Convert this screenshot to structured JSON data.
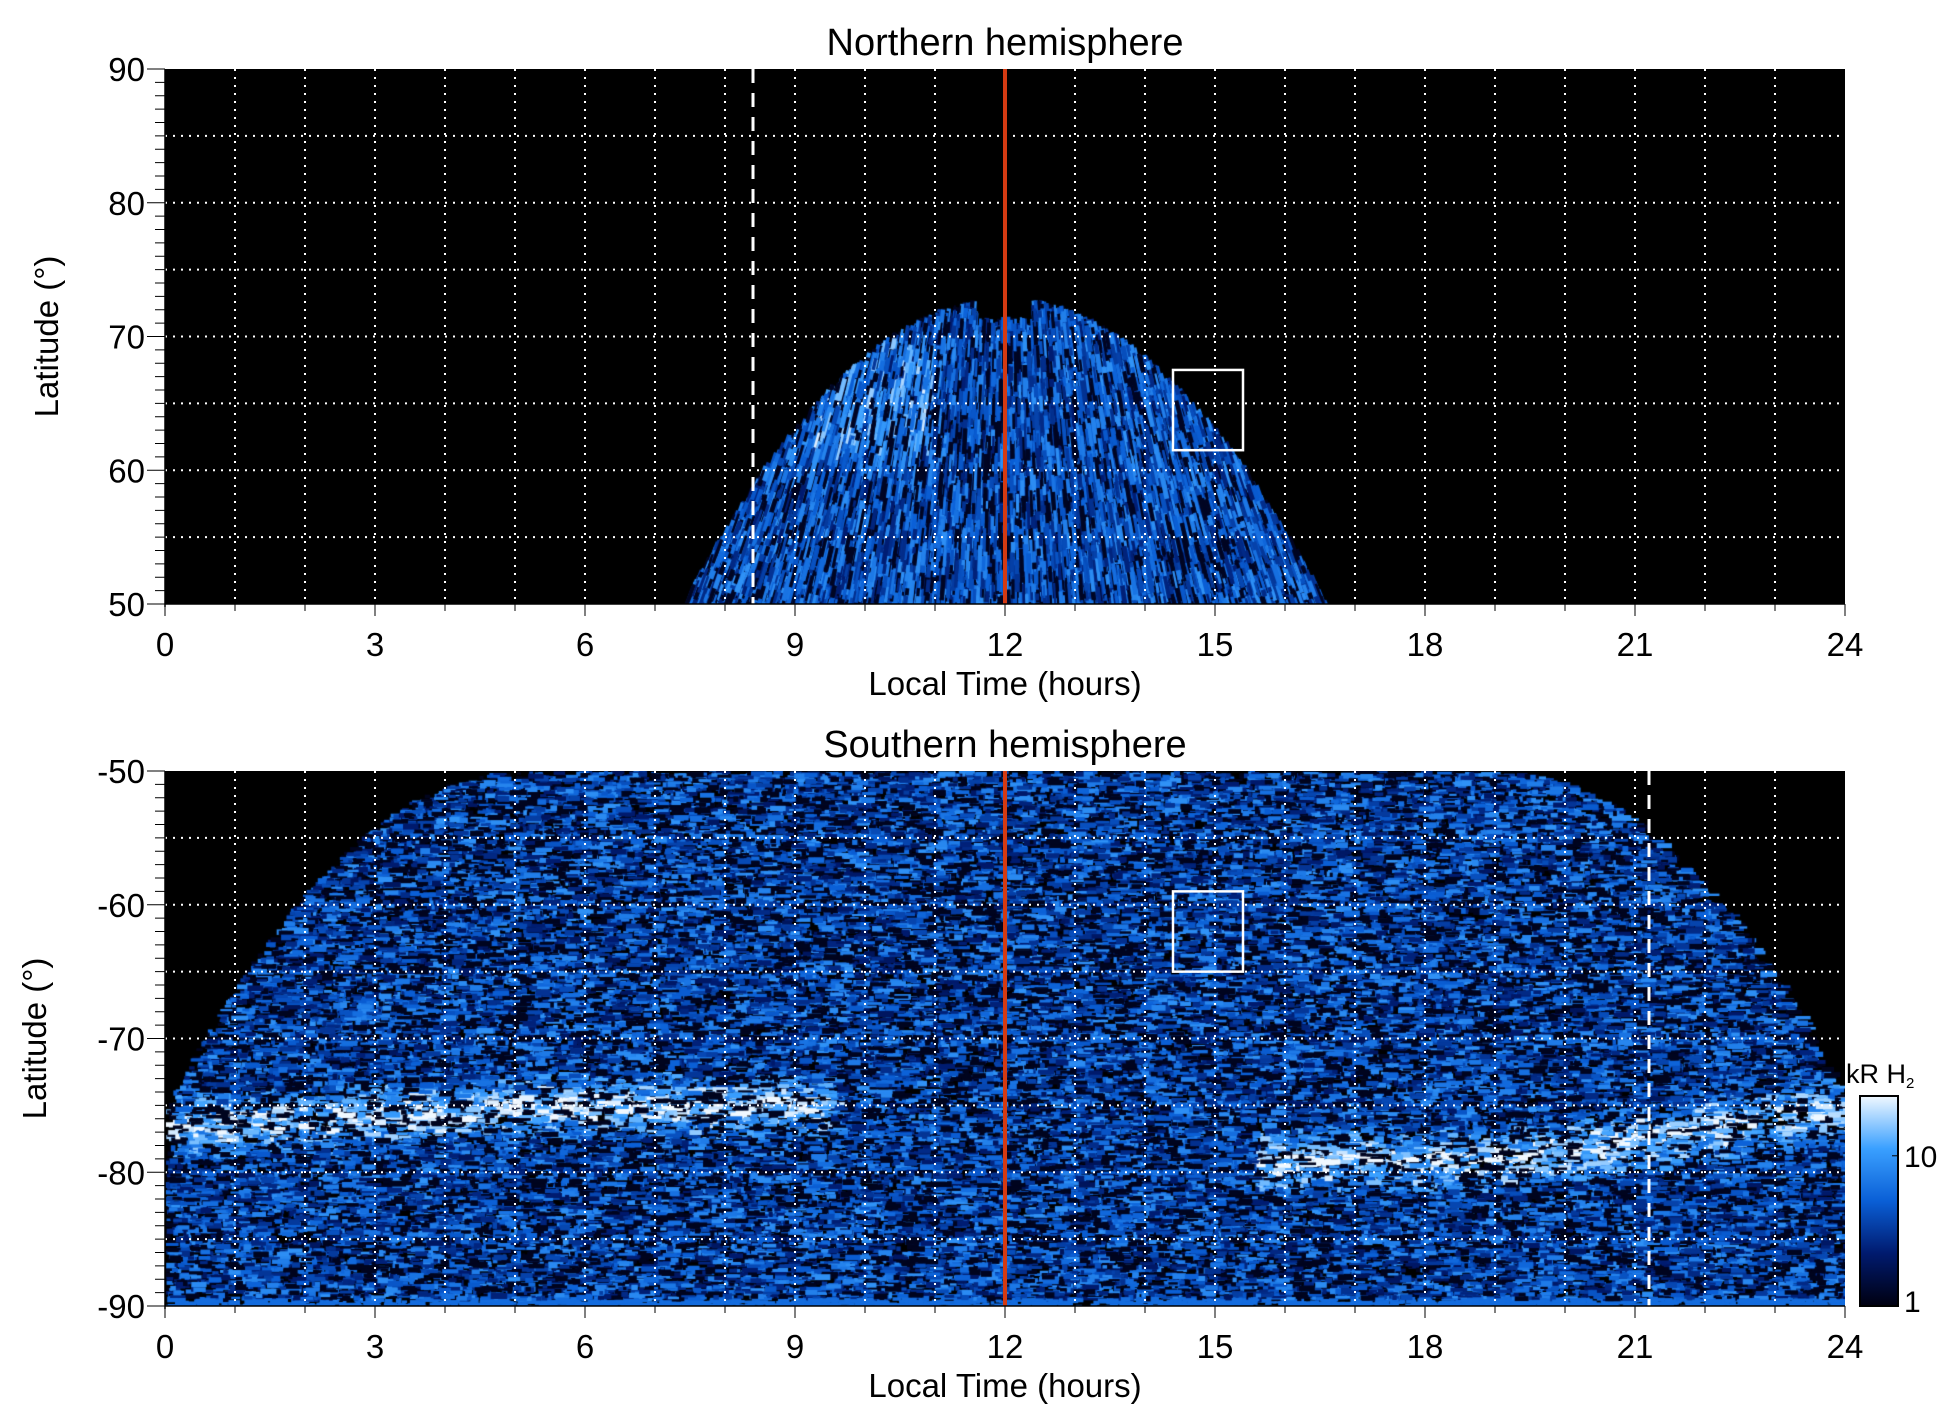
{
  "chart_data": [
    {
      "type": "heatmap",
      "title": "Northern hemisphere",
      "xlabel": "Local Time (hours)",
      "ylabel": "Latitude (°)",
      "xlim": [
        0,
        24
      ],
      "ylim": [
        50,
        90
      ],
      "xticks": [
        "0",
        "3",
        "6",
        "9",
        "12",
        "15",
        "18",
        "21",
        "24"
      ],
      "yticks": [
        "50",
        "60",
        "70",
        "80",
        "90"
      ],
      "grid": true,
      "red_line_lt": 12,
      "dashed_line_lt": 8.4,
      "box": {
        "lt": [
          14.4,
          15.4
        ],
        "lat": [
          61.5,
          67.5
        ]
      },
      "emission_region": {
        "lt_range": [
          7.6,
          16.6
        ],
        "max_lat": 73
      }
    },
    {
      "type": "heatmap",
      "title": "Southern hemisphere",
      "xlabel": "Local Time (hours)",
      "ylabel": "Latitude (°)",
      "xlim": [
        0,
        24
      ],
      "ylim": [
        -90,
        -50
      ],
      "xticks": [
        "0",
        "3",
        "6",
        "9",
        "12",
        "15",
        "18",
        "21",
        "24"
      ],
      "yticks": [
        "-90",
        "-80",
        "-70",
        "-60",
        "-50"
      ],
      "grid": true,
      "red_line_lt": 12,
      "dashed_line_lt": 21.2,
      "box": {
        "lt": [
          14.4,
          15.4
        ],
        "lat": [
          -65,
          -59
        ]
      },
      "bright_oval": {
        "dawn_lat": -75,
        "dusk_lat": -79
      }
    }
  ],
  "colorbar": {
    "label": "kR H",
    "label_sub": "2",
    "scale": "log",
    "range": [
      1,
      25
    ],
    "ticks": [
      "1",
      "10"
    ],
    "colors": [
      "#000010",
      "#001a6e",
      "#0a5fd6",
      "#3aa0ff",
      "#f0f8ff"
    ]
  },
  "colors": {
    "red_line": "#d43a12",
    "grid": "#ffffff"
  }
}
